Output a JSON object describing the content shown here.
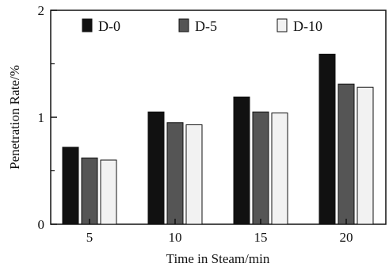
{
  "chart_data": {
    "type": "bar",
    "categories": [
      "5",
      "10",
      "15",
      "20"
    ],
    "series": [
      {
        "name": "D-0",
        "values": [
          0.72,
          1.05,
          1.19,
          1.59
        ],
        "color": "#111111"
      },
      {
        "name": "D-5",
        "values": [
          0.62,
          0.95,
          1.05,
          1.31
        ],
        "color": "#555555"
      },
      {
        "name": "D-10",
        "values": [
          0.6,
          0.93,
          1.04,
          1.28
        ],
        "color": "#f2f2f2"
      }
    ],
    "title": "",
    "xlabel": "Time in Steam/min",
    "ylabel": "Penetration Rate/%",
    "ylim": [
      0,
      2
    ],
    "yticks": [
      "0",
      "1",
      "2"
    ],
    "grid": false,
    "legend": "top",
    "edge_color": "#111111"
  }
}
